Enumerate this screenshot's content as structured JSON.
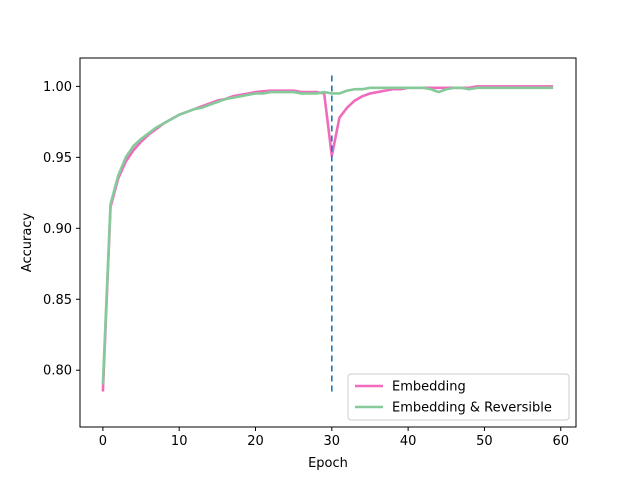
{
  "chart_data": {
    "type": "line",
    "title": "",
    "xlabel": "Epoch",
    "ylabel": "Accuracy",
    "xlim": [
      -3,
      62
    ],
    "ylim": [
      0.76,
      1.02
    ],
    "xticks": [
      0,
      10,
      20,
      30,
      40,
      50,
      60
    ],
    "yticks": [
      0.8,
      0.85,
      0.9,
      0.95,
      1.0
    ],
    "xtick_labels": [
      "0",
      "10",
      "20",
      "30",
      "40",
      "50",
      "60"
    ],
    "ytick_labels": [
      "0.80",
      "0.85",
      "0.90",
      "0.95",
      "1.00"
    ],
    "grid": false,
    "legend_position": "lower-right",
    "vline": {
      "x": 30,
      "ymin": 0.785,
      "ymax": 1.01,
      "color": "#1f77b4",
      "style": "dashed"
    },
    "series": [
      {
        "name": "Embedding",
        "color": "#f06bbd",
        "x": [
          0,
          1,
          2,
          3,
          4,
          5,
          6,
          7,
          8,
          9,
          10,
          11,
          12,
          13,
          14,
          15,
          16,
          17,
          18,
          19,
          20,
          21,
          22,
          23,
          24,
          25,
          26,
          27,
          28,
          29,
          30,
          31,
          32,
          33,
          34,
          35,
          36,
          37,
          38,
          39,
          40,
          41,
          42,
          43,
          44,
          45,
          46,
          47,
          48,
          49,
          50,
          51,
          52,
          53,
          54,
          55,
          56,
          57,
          58,
          59
        ],
        "values": [
          0.785,
          0.915,
          0.935,
          0.947,
          0.955,
          0.961,
          0.966,
          0.97,
          0.974,
          0.977,
          0.98,
          0.982,
          0.984,
          0.986,
          0.988,
          0.99,
          0.991,
          0.993,
          0.994,
          0.995,
          0.996,
          0.9965,
          0.997,
          0.997,
          0.997,
          0.997,
          0.996,
          0.996,
          0.996,
          0.995,
          0.951,
          0.978,
          0.985,
          0.99,
          0.993,
          0.995,
          0.996,
          0.997,
          0.998,
          0.998,
          0.999,
          0.999,
          0.999,
          0.999,
          0.999,
          0.999,
          0.999,
          0.999,
          0.999,
          1.0,
          1.0,
          1.0,
          1.0,
          1.0,
          1.0,
          1.0,
          1.0,
          1.0,
          1.0,
          1.0
        ]
      },
      {
        "name": "Embedding & Reversible",
        "color": "#86c99a",
        "x": [
          0,
          1,
          2,
          3,
          4,
          5,
          6,
          7,
          8,
          9,
          10,
          11,
          12,
          13,
          14,
          15,
          16,
          17,
          18,
          19,
          20,
          21,
          22,
          23,
          24,
          25,
          26,
          27,
          28,
          29,
          30,
          31,
          32,
          33,
          34,
          35,
          36,
          37,
          38,
          39,
          40,
          41,
          42,
          43,
          44,
          45,
          46,
          47,
          48,
          49,
          50,
          51,
          52,
          53,
          54,
          55,
          56,
          57,
          58,
          59
        ],
        "values": [
          0.79,
          0.917,
          0.937,
          0.95,
          0.958,
          0.963,
          0.967,
          0.971,
          0.974,
          0.977,
          0.98,
          0.982,
          0.984,
          0.985,
          0.987,
          0.989,
          0.991,
          0.992,
          0.993,
          0.994,
          0.995,
          0.995,
          0.996,
          0.996,
          0.996,
          0.996,
          0.995,
          0.995,
          0.995,
          0.996,
          0.995,
          0.995,
          0.997,
          0.998,
          0.998,
          0.999,
          0.999,
          0.999,
          0.999,
          0.999,
          0.999,
          0.999,
          0.999,
          0.998,
          0.996,
          0.998,
          0.999,
          0.999,
          0.998,
          0.999,
          0.999,
          0.999,
          0.999,
          0.999,
          0.999,
          0.999,
          0.999,
          0.999,
          0.999,
          0.999
        ]
      }
    ]
  }
}
